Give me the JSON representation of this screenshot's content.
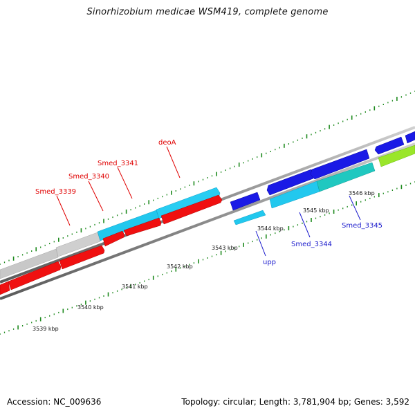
{
  "title": "Sinorhizobium medicae WSM419, complete genome",
  "footer": {
    "accession": "Accession: NC_009636",
    "summary": "Topology: circular; Length: 3,781,904 bp; Genes: 3,592"
  },
  "colors": {
    "backbone": "#8c8c8c",
    "tick": "#1e8a1e",
    "forward_label": "#e00000",
    "reverse_label": "#1a1acc",
    "gene_red": "#f01010",
    "gene_cyan": "#22c8ee",
    "gene_gray": "#c8c8c8",
    "gene_blue": "#1a1ae6",
    "gene_teal": "#20c8c0",
    "gene_green": "#9ae62a"
  },
  "scale": {
    "kbp_labels": [
      "3539 kbp",
      "3540 kbp",
      "3541 kbp",
      "3542 kbp",
      "3543 kbp",
      "3544 kbp",
      "3545 kbp",
      "3546 kbp"
    ]
  },
  "gene_labels": {
    "forward": [
      "Smed_3339",
      "Smed_3340",
      "Smed_3341",
      "deoA"
    ],
    "reverse": [
      "upp",
      "Smed_3344",
      "Smed_3345"
    ]
  }
}
